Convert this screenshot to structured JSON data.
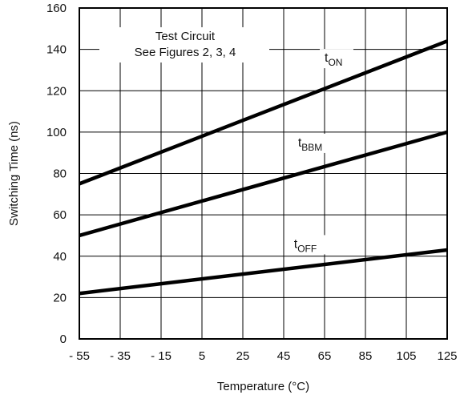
{
  "chart_data": {
    "type": "line",
    "xlabel": "Temperature (°C)",
    "ylabel": "Switching Time (ns)",
    "x_ticks": [
      -55,
      -35,
      -15,
      5,
      25,
      45,
      65,
      85,
      105,
      125
    ],
    "x_tick_labels": [
      "- 55",
      "- 35",
      "- 15",
      "5",
      "25",
      "45",
      "65",
      "85",
      "105",
      "125"
    ],
    "y_ticks": [
      0,
      20,
      40,
      60,
      80,
      100,
      120,
      140,
      160
    ],
    "y_tick_labels": [
      "0",
      "20",
      "40",
      "60",
      "80",
      "100",
      "120",
      "140",
      "160"
    ],
    "xlim": [
      -55,
      125
    ],
    "ylim": [
      0,
      160
    ],
    "grid": true,
    "annotation": [
      "Test Circuit",
      "See Figures 2, 3, 4"
    ],
    "series": [
      {
        "name": "ON",
        "label_main": "t",
        "label_sub": "ON",
        "x": [
          -55,
          125
        ],
        "y": [
          75,
          144
        ],
        "label_at": [
          65,
          134
        ]
      },
      {
        "name": "BBM",
        "label_main": "t",
        "label_sub": "BBM",
        "x": [
          -55,
          125
        ],
        "y": [
          50,
          100
        ],
        "label_at": [
          52,
          93
        ]
      },
      {
        "name": "OFF",
        "label_main": "t",
        "label_sub": "OFF",
        "x": [
          -55,
          125
        ],
        "y": [
          22,
          43
        ],
        "label_at": [
          50,
          44
        ]
      }
    ]
  }
}
